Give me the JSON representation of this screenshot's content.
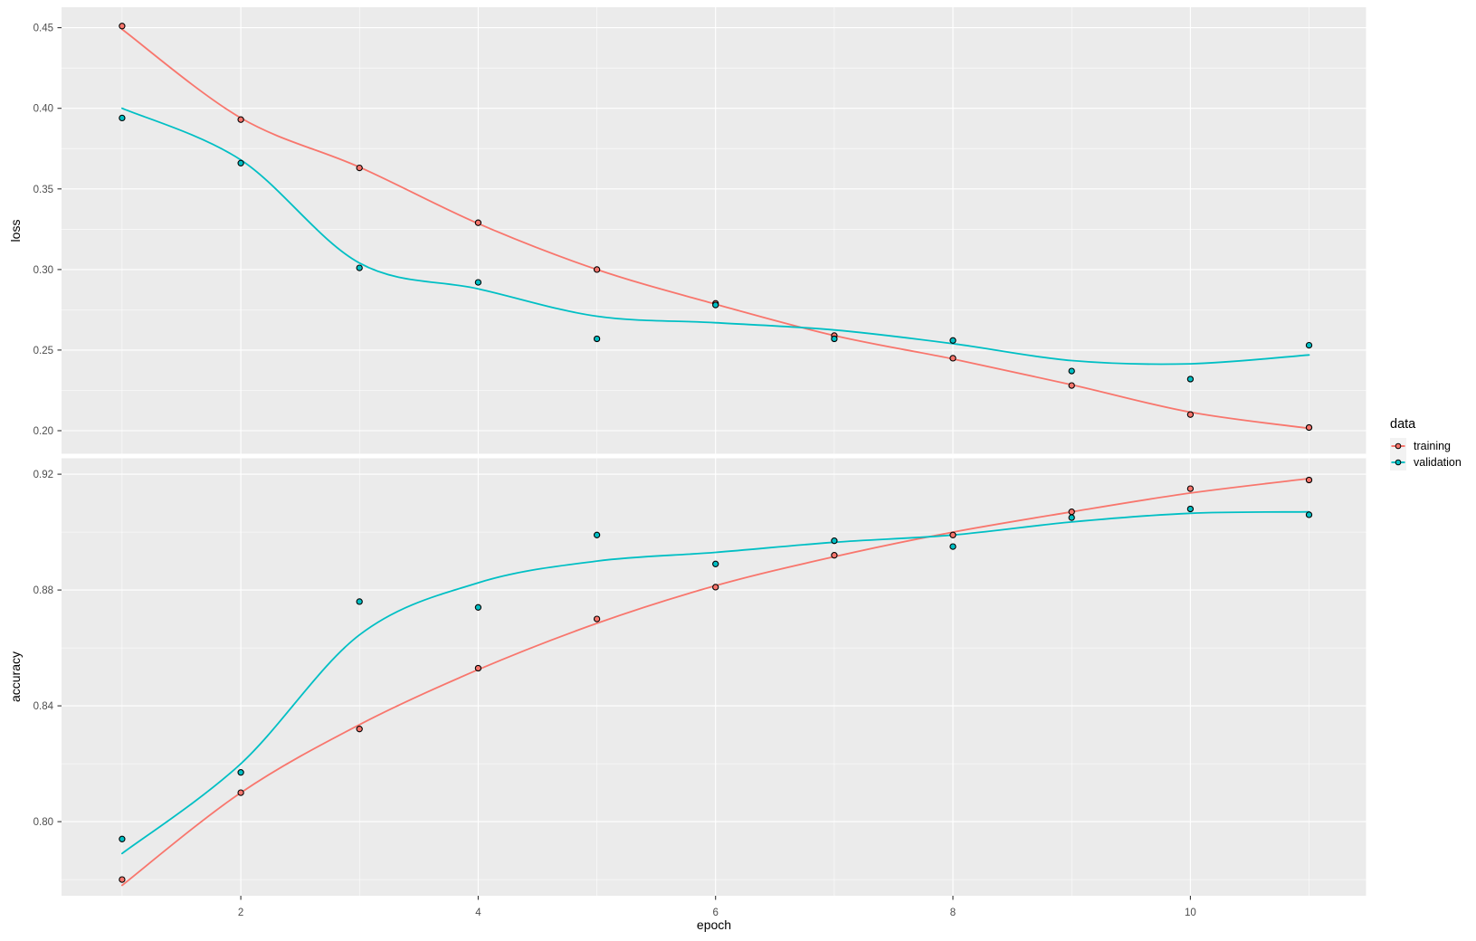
{
  "colors": {
    "background": "#FFFFFF",
    "panel_bg": "#EBEBEB",
    "grid": "#FFFFFF",
    "axis_text": "#4D4D4D",
    "tick_mark": "#333333",
    "point_stroke": "#000000",
    "legend_key_bg": "#F2F2F2",
    "training": "#F8766D",
    "validation": "#00BFC4"
  },
  "legend": {
    "title": "data",
    "entries": [
      {
        "label": "training",
        "color": "#F8766D"
      },
      {
        "label": "validation",
        "color": "#00BFC4"
      }
    ]
  },
  "axis_titles": {
    "x": "epoch",
    "y_top": "loss",
    "y_bottom": "accuracy"
  },
  "chart_data": {
    "type": "scatter",
    "style": "points with loess smooth lines, two stacked facets sharing x axis (ggplot2 theme_gray)",
    "xlabel": "epoch",
    "x": [
      1,
      2,
      3,
      4,
      5,
      6,
      7,
      8,
      9,
      10,
      11
    ],
    "xlim": [
      0.49,
      11.48
    ],
    "xticks": [
      "2",
      "4",
      "6",
      "8",
      "10"
    ],
    "xminor": [
      1,
      3,
      5,
      7,
      9,
      11
    ],
    "legend_title": "data",
    "legend_position": "right",
    "facets": [
      {
        "name": "loss",
        "ylabel": "loss",
        "ylim": [
          0.1857,
          0.4627
        ],
        "yticks": [
          "0.45",
          "0.40",
          "0.35",
          "0.30",
          "0.25",
          "0.20"
        ],
        "yminor": [
          0.425,
          0.375,
          0.325,
          0.275,
          0.225
        ],
        "series": [
          {
            "name": "training",
            "color": "#F8766D",
            "points": [
              0.451,
              0.393,
              0.363,
              0.329,
              0.3,
              0.279,
              0.259,
              0.245,
              0.228,
              0.21,
              0.202
            ],
            "smooth": [
              0.449,
              0.394,
              0.3635,
              0.3285,
              0.3,
              0.2785,
              0.259,
              0.2445,
              0.2285,
              0.2115,
              0.2015
            ]
          },
          {
            "name": "validation",
            "color": "#00BFC4",
            "points": [
              0.394,
              0.366,
              0.301,
              0.292,
              0.257,
              0.278,
              0.257,
              0.256,
              0.237,
              0.232,
              0.253
            ],
            "smooth": [
              0.4,
              0.368,
              0.304,
              0.288,
              0.271,
              0.267,
              0.2625,
              0.254,
              0.2435,
              0.2415,
              0.247
            ]
          }
        ]
      },
      {
        "name": "accuracy",
        "ylabel": "accuracy",
        "ylim": [
          0.7744,
          0.9255
        ],
        "yticks": [
          "0.92",
          "0.88",
          "0.84",
          "0.80"
        ],
        "yminor": [
          0.9,
          0.86,
          0.82,
          0.78
        ],
        "series": [
          {
            "name": "training",
            "color": "#F8766D",
            "points": [
              0.78,
              0.81,
              0.832,
              0.853,
              0.87,
              0.881,
              0.892,
              0.899,
              0.907,
              0.915,
              0.918
            ],
            "smooth": [
              0.778,
              0.81,
              0.8335,
              0.8525,
              0.8685,
              0.8815,
              0.8915,
              0.9,
              0.907,
              0.9135,
              0.9185
            ]
          },
          {
            "name": "validation",
            "color": "#00BFC4",
            "points": [
              0.794,
              0.817,
              0.876,
              0.874,
              0.899,
              0.889,
              0.897,
              0.895,
              0.905,
              0.908,
              0.906
            ],
            "smooth": [
              0.789,
              0.82,
              0.8645,
              0.8825,
              0.89,
              0.893,
              0.8965,
              0.899,
              0.9035,
              0.9065,
              0.907
            ]
          }
        ]
      }
    ]
  }
}
